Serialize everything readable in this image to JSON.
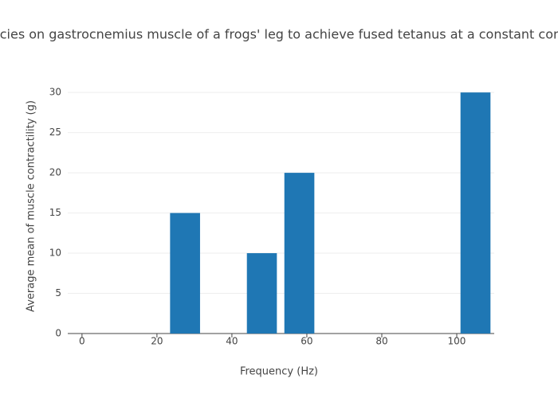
{
  "chart_data": {
    "type": "bar",
    "title": "ncies on gastrocnemius muscle of a frogs' leg to achieve fused tetanus at a constant cont",
    "x_label": "Frequency (Hz)",
    "y_label": "Average mean of muscle contractility (g)",
    "x": [
      27.5,
      48,
      58,
      105
    ],
    "values": [
      15,
      10,
      20,
      30
    ],
    "color": "#1f77b4",
    "xlim": [
      -3.8,
      110
    ],
    "xticks": [
      0,
      20,
      40,
      60,
      80,
      100
    ],
    "ylim": [
      0,
      31.6
    ],
    "yticks": [
      0,
      5,
      10,
      15,
      20,
      25,
      30
    ],
    "grid": true
  }
}
